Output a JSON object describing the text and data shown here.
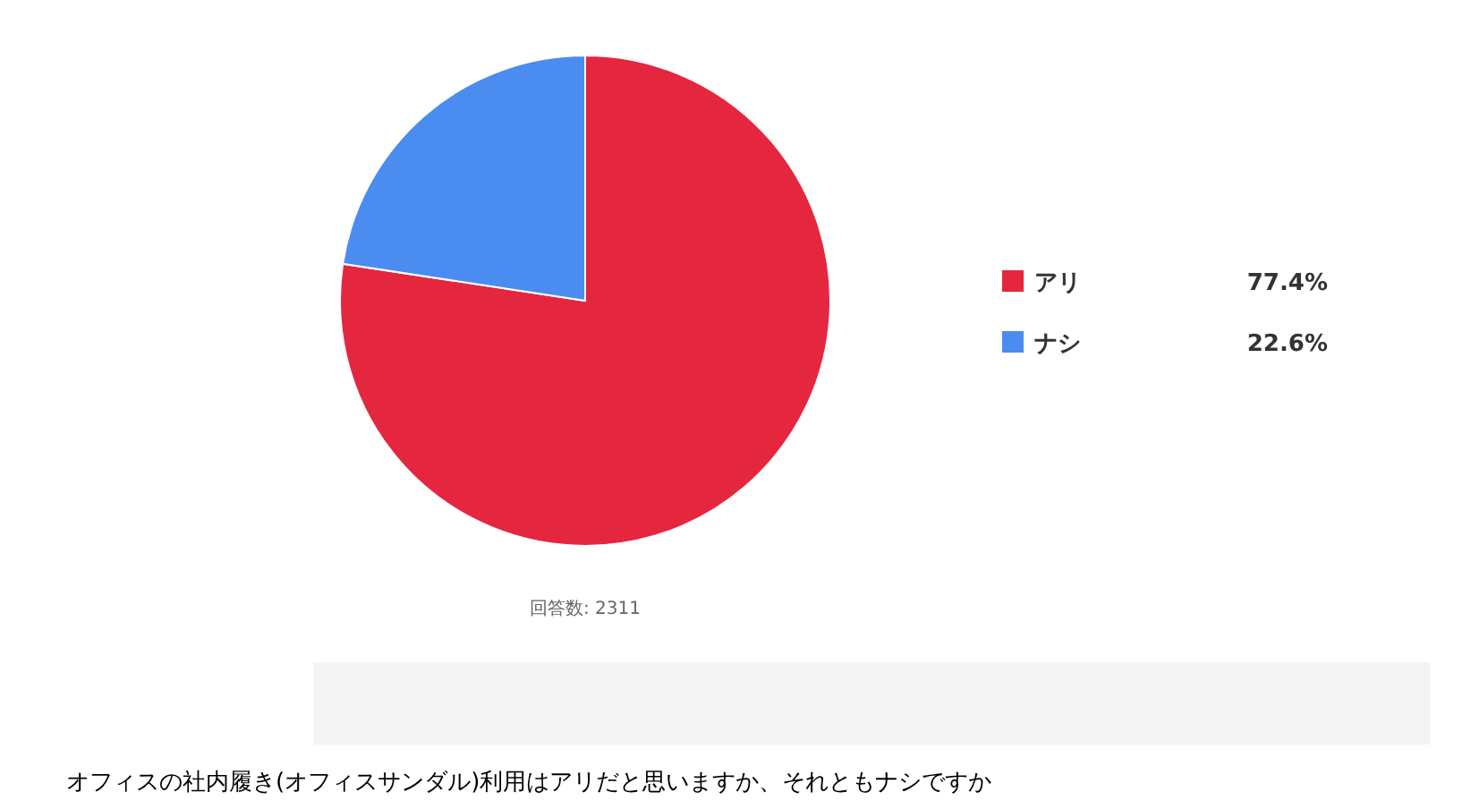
{
  "chart_data": {
    "type": "pie",
    "title": "オフィスの社内履き(オフィスサンダル)利用はアリだと思いますか、それともナシですか",
    "categories": [
      "アリ",
      "ナシ"
    ],
    "values": [
      77.4,
      22.6
    ],
    "colors": [
      "#e5263f",
      "#4a8cf0"
    ],
    "value_labels": [
      "77.4%",
      "22.6%"
    ],
    "legend": "right",
    "annotations": [
      "回答数: 2311"
    ]
  }
}
